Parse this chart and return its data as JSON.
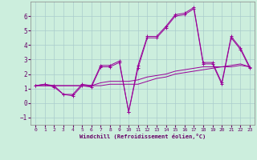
{
  "xlabel": "Windchill (Refroidissement éolien,°C)",
  "ylabel": "",
  "background_color": "#cceedd",
  "grid_color": "#aacccc",
  "line_color": "#990099",
  "xlim": [
    -0.5,
    23.5
  ],
  "ylim": [
    -1.5,
    7.0
  ],
  "yticks": [
    -1,
    0,
    1,
    2,
    3,
    4,
    5,
    6
  ],
  "xticks": [
    0,
    1,
    2,
    3,
    4,
    5,
    6,
    7,
    8,
    9,
    10,
    11,
    12,
    13,
    14,
    15,
    16,
    17,
    18,
    19,
    20,
    21,
    22,
    23
  ],
  "series": [
    [
      1.2,
      1.3,
      1.2,
      0.6,
      0.6,
      1.3,
      1.2,
      2.6,
      2.6,
      2.9,
      -0.6,
      2.6,
      4.6,
      4.6,
      5.3,
      6.1,
      6.2,
      6.6,
      2.8,
      2.8,
      1.4,
      4.6,
      3.8,
      2.5
    ],
    [
      1.2,
      1.2,
      1.2,
      1.2,
      1.2,
      1.2,
      1.2,
      1.2,
      1.3,
      1.3,
      1.3,
      1.3,
      1.5,
      1.7,
      1.8,
      2.0,
      2.1,
      2.2,
      2.3,
      2.4,
      2.5,
      2.5,
      2.6,
      2.5
    ],
    [
      1.2,
      1.2,
      1.2,
      1.2,
      1.2,
      1.2,
      1.2,
      1.4,
      1.5,
      1.5,
      1.5,
      1.6,
      1.8,
      1.9,
      2.0,
      2.2,
      2.3,
      2.4,
      2.5,
      2.5,
      2.5,
      2.6,
      2.7,
      2.5
    ],
    [
      1.2,
      1.3,
      1.1,
      0.6,
      0.5,
      1.2,
      1.1,
      2.5,
      2.5,
      2.8,
      -0.6,
      2.4,
      4.5,
      4.5,
      5.2,
      6.0,
      6.1,
      6.5,
      2.7,
      2.7,
      1.3,
      4.5,
      3.7,
      2.4
    ]
  ],
  "figsize": [
    3.2,
    2.0
  ],
  "dpi": 100
}
